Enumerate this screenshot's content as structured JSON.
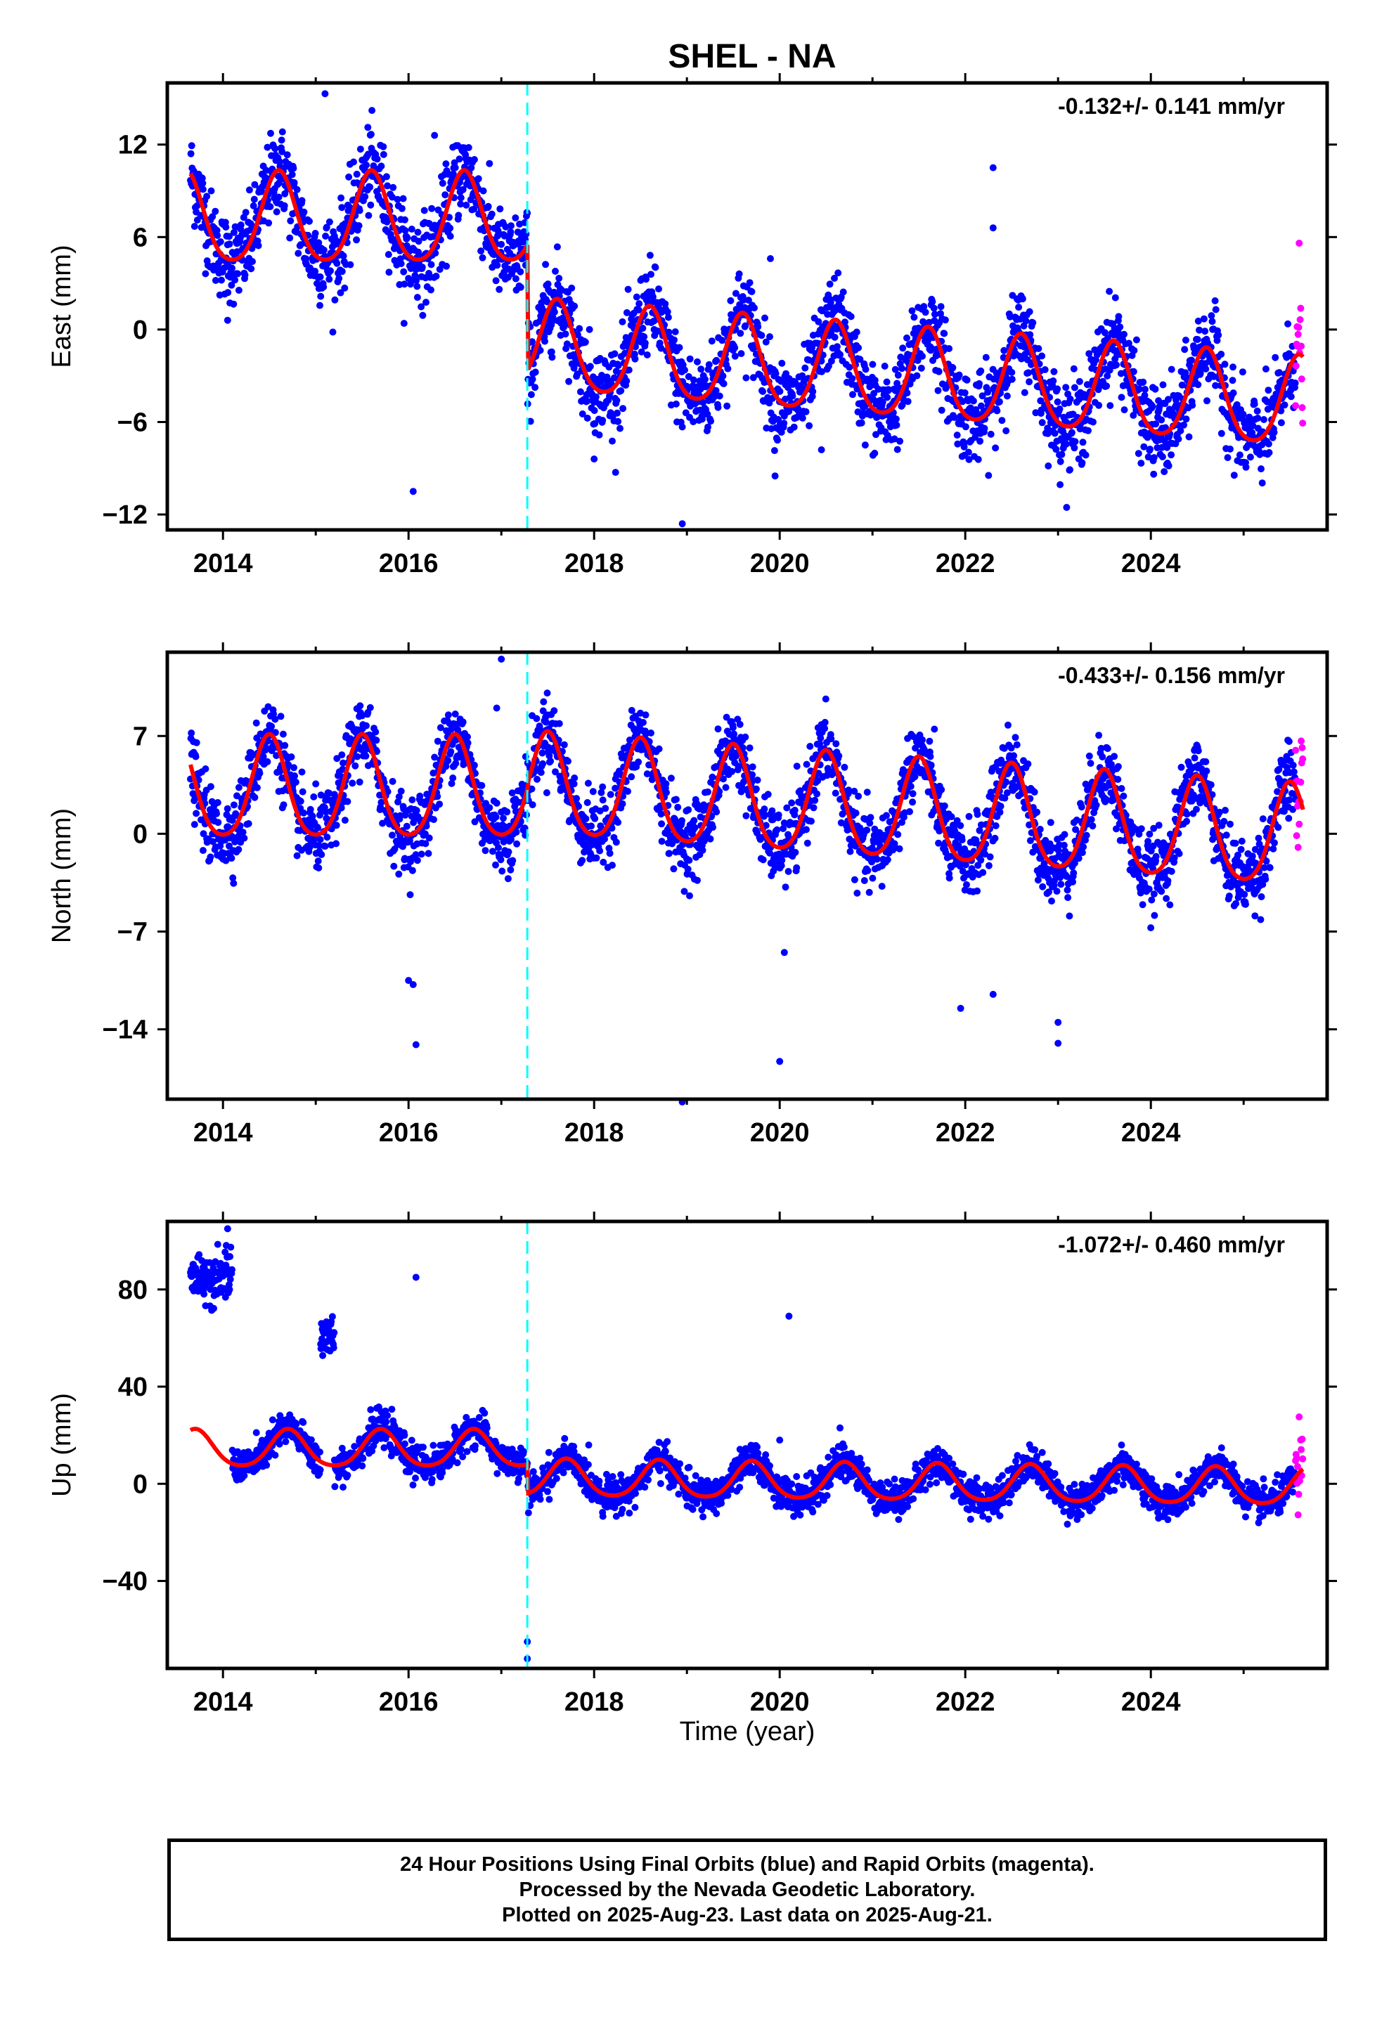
{
  "title": "SHEL - NA",
  "xlabel": "Time (year)",
  "colors": {
    "final": "#0000ff",
    "rapid": "#ff00ff",
    "model": "#ff0000",
    "offset": "#00ffff"
  },
  "footer": {
    "line1": "24 Hour Positions Using Final Orbits (blue) and Rapid Orbits (magenta).",
    "line2": "Processed by the Nevada Geodetic Laboratory.",
    "line3": "Plotted on 2025-Aug-23. Last data on 2025-Aug-21."
  },
  "chart_data": [
    {
      "type": "scatter",
      "panel": "east",
      "ylabel": "East (mm)",
      "rate_label": "-0.132+/- 0.141 mm/yr",
      "xlim": [
        2013.4,
        2025.9
      ],
      "ylim": [
        -13,
        16
      ],
      "xticks": [
        2014,
        2016,
        2018,
        2020,
        2022,
        2024
      ],
      "yticks": [
        12,
        6,
        0,
        -6,
        -12
      ],
      "equipment_change": 2017.28,
      "data_start": 2013.65,
      "data_end": 2025.64,
      "rapid_start": 2025.56,
      "model": {
        "offset_before": 7.0,
        "offset_after": -1.2,
        "amplitude": 2.9,
        "peak_phase": 0.6,
        "noise": 1.4
      },
      "outliers": [
        {
          "x": 2015.1,
          "y": 15.3
        },
        {
          "x": 2016.05,
          "y": -10.5
        },
        {
          "x": 2016.28,
          "y": 12.6
        },
        {
          "x": 2014.05,
          "y": 0.6
        },
        {
          "x": 2022.3,
          "y": 10.5
        },
        {
          "x": 2022.3,
          "y": 6.6
        },
        {
          "x": 2018.0,
          "y": -8.4
        },
        {
          "x": 2018.95,
          "y": -12.6
        },
        {
          "x": 2019.95,
          "y": -9.5
        },
        {
          "x": 2020.45,
          "y": -7.8
        },
        {
          "x": 2019.9,
          "y": 4.6
        }
      ]
    },
    {
      "type": "scatter",
      "panel": "north",
      "ylabel": "North (mm)",
      "rate_label": "-0.433+/- 0.156 mm/yr",
      "xlim": [
        2013.4,
        2025.9
      ],
      "ylim": [
        -19,
        13
      ],
      "xticks": [
        2014,
        2016,
        2018,
        2020,
        2022,
        2024
      ],
      "yticks": [
        7,
        0,
        -7,
        -14
      ],
      "equipment_change": 2017.28,
      "data_start": 2013.65,
      "data_end": 2025.64,
      "rapid_start": 2025.56,
      "model": {
        "offset_before": 3.0,
        "offset_after": 3.3,
        "amplitude": 3.6,
        "peak_phase": 0.5,
        "noise": 1.3
      },
      "outliers": [
        {
          "x": 2016.0,
          "y": -10.5
        },
        {
          "x": 2016.05,
          "y": -10.8
        },
        {
          "x": 2016.08,
          "y": -15.1
        },
        {
          "x": 2017.0,
          "y": 12.5
        },
        {
          "x": 2016.95,
          "y": 9.0
        },
        {
          "x": 2018.95,
          "y": -19.2
        },
        {
          "x": 2020.0,
          "y": -16.3
        },
        {
          "x": 2021.95,
          "y": -12.5
        },
        {
          "x": 2022.3,
          "y": -11.5
        },
        {
          "x": 2023.0,
          "y": -13.5
        },
        {
          "x": 2023.0,
          "y": -15.0
        },
        {
          "x": 2020.05,
          "y": -8.5
        }
      ]
    },
    {
      "type": "scatter",
      "panel": "up",
      "ylabel": "Up (mm)",
      "rate_label": "-1.072+/- 0.460 mm/yr",
      "xlim": [
        2013.4,
        2025.9
      ],
      "ylim": [
        -76,
        108
      ],
      "xticks": [
        2014,
        2016,
        2018,
        2020,
        2022,
        2024
      ],
      "yticks": [
        80,
        40,
        0,
        -40
      ],
      "equipment_change": 2017.28,
      "data_start": 2013.65,
      "data_end": 2025.64,
      "rapid_start": 2025.56,
      "model": {
        "offset_before": 14.0,
        "offset_after": 2.0,
        "amplitude": 7.5,
        "peak_phase": 0.7,
        "noise": 3.5
      },
      "outliers": [
        {
          "x": 2014.05,
          "y": 105
        },
        {
          "x": 2016.08,
          "y": 85
        },
        {
          "x": 2020.1,
          "y": 69
        },
        {
          "x": 2020.65,
          "y": 23
        },
        {
          "x": 2020.0,
          "y": 18
        },
        {
          "x": 2017.28,
          "y": -65
        },
        {
          "x": 2017.28,
          "y": -72
        }
      ]
    }
  ]
}
